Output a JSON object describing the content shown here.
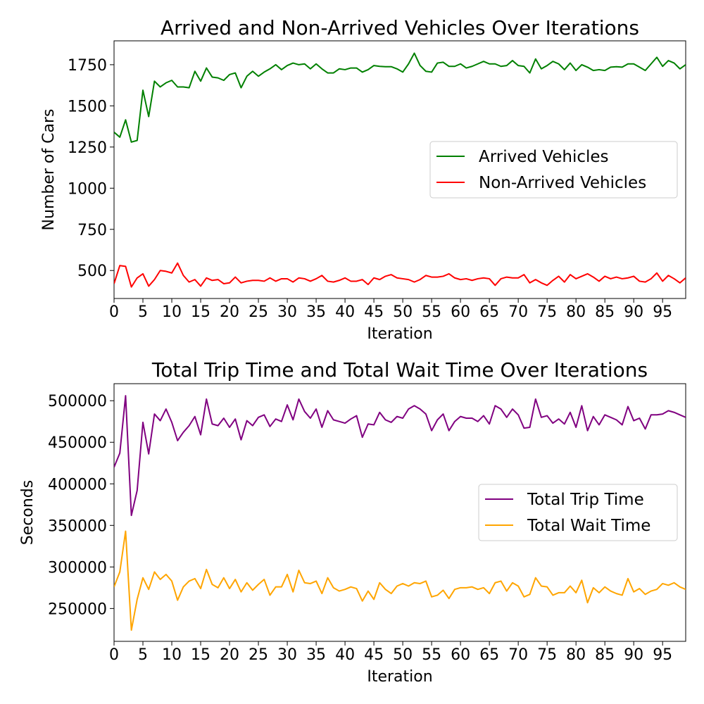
{
  "chart_data": [
    {
      "type": "line",
      "title": "Arrived and Non-Arrived Vehicles Over Iterations",
      "xlabel": "Iteration",
      "ylabel": "Number of Cars",
      "xlim": [
        0,
        99
      ],
      "ylim": [
        330,
        1895
      ],
      "x_ticks": [
        0,
        5,
        10,
        15,
        20,
        25,
        30,
        35,
        40,
        45,
        50,
        55,
        60,
        65,
        70,
        75,
        80,
        85,
        90,
        95
      ],
      "y_ticks": [
        500,
        750,
        1000,
        1250,
        1500,
        1750
      ],
      "legend_position": "center-right",
      "series": [
        {
          "name": "Arrived Vehicles",
          "color": "#008000",
          "values": [
            1340,
            1310,
            1415,
            1280,
            1290,
            1595,
            1435,
            1650,
            1615,
            1640,
            1655,
            1615,
            1615,
            1610,
            1710,
            1650,
            1730,
            1675,
            1670,
            1655,
            1690,
            1700,
            1610,
            1680,
            1710,
            1680,
            1705,
            1725,
            1750,
            1720,
            1745,
            1760,
            1750,
            1755,
            1725,
            1755,
            1725,
            1700,
            1700,
            1725,
            1720,
            1730,
            1730,
            1705,
            1720,
            1745,
            1740,
            1738,
            1738,
            1725,
            1705,
            1755,
            1820,
            1745,
            1710,
            1705,
            1760,
            1765,
            1740,
            1740,
            1755,
            1730,
            1740,
            1755,
            1770,
            1755,
            1755,
            1740,
            1745,
            1775,
            1745,
            1740,
            1700,
            1785,
            1725,
            1745,
            1770,
            1755,
            1720,
            1760,
            1715,
            1750,
            1735,
            1715,
            1720,
            1715,
            1735,
            1738,
            1735,
            1755,
            1755,
            1735,
            1715,
            1755,
            1795,
            1740,
            1775,
            1760,
            1725,
            1750
          ]
        },
        {
          "name": "Non-Arrived Vehicles",
          "color": "#ff0000",
          "values": [
            420,
            530,
            525,
            400,
            455,
            480,
            405,
            445,
            500,
            495,
            485,
            545,
            470,
            430,
            445,
            405,
            455,
            440,
            445,
            420,
            425,
            460,
            425,
            435,
            440,
            440,
            435,
            455,
            435,
            450,
            450,
            430,
            455,
            450,
            435,
            450,
            470,
            435,
            430,
            440,
            455,
            435,
            435,
            445,
            415,
            455,
            445,
            465,
            475,
            455,
            450,
            445,
            430,
            445,
            470,
            460,
            460,
            465,
            480,
            455,
            445,
            450,
            440,
            450,
            455,
            450,
            410,
            450,
            460,
            455,
            455,
            475,
            425,
            445,
            425,
            410,
            440,
            465,
            430,
            475,
            450,
            465,
            480,
            460,
            435,
            465,
            450,
            460,
            450,
            455,
            465,
            435,
            430,
            450,
            485,
            435,
            470,
            450,
            425,
            455
          ]
        }
      ]
    },
    {
      "type": "line",
      "title": "Total Trip Time and Total Wait Time Over Iterations",
      "xlabel": "Iteration",
      "ylabel": "Seconds",
      "xlim": [
        0,
        99
      ],
      "ylim": [
        210500,
        520500
      ],
      "x_ticks": [
        0,
        5,
        10,
        15,
        20,
        25,
        30,
        35,
        40,
        45,
        50,
        55,
        60,
        65,
        70,
        75,
        80,
        85,
        90,
        95
      ],
      "y_ticks": [
        250000,
        300000,
        350000,
        400000,
        450000,
        500000
      ],
      "legend_position": "center-right",
      "series": [
        {
          "name": "Total Trip Time",
          "color": "#800080",
          "values": [
            420000,
            437000,
            506000,
            362000,
            392000,
            474000,
            436000,
            484000,
            476000,
            490000,
            474000,
            452000,
            462000,
            470000,
            481000,
            459000,
            502000,
            472000,
            470000,
            479000,
            468000,
            478000,
            453000,
            476000,
            470000,
            480000,
            483000,
            469000,
            478000,
            475000,
            495000,
            477000,
            502000,
            487000,
            479000,
            490000,
            468000,
            488000,
            477000,
            475000,
            473000,
            478000,
            482000,
            456000,
            472000,
            471000,
            486000,
            477000,
            474000,
            481000,
            479000,
            490000,
            494000,
            490000,
            484000,
            464000,
            477000,
            484000,
            464000,
            475000,
            481000,
            479000,
            479000,
            475000,
            482000,
            472000,
            494000,
            490000,
            480000,
            490000,
            483000,
            467000,
            468000,
            502000,
            480000,
            482000,
            473000,
            478000,
            472000,
            486000,
            468000,
            494000,
            464000,
            481000,
            471000,
            483000,
            480000,
            477000,
            471000,
            493000,
            476000,
            479000,
            466000,
            483000,
            483000,
            484000,
            488000,
            486000,
            483000,
            480000
          ]
        },
        {
          "name": "Total Wait Time",
          "color": "#ffa500",
          "values": [
            276000,
            294000,
            343000,
            224000,
            261000,
            287000,
            273000,
            294000,
            285000,
            291000,
            283000,
            260000,
            276000,
            283000,
            286000,
            274000,
            297000,
            279000,
            275000,
            287000,
            274000,
            285000,
            270000,
            281000,
            272000,
            279000,
            285000,
            266000,
            276000,
            276000,
            291000,
            270000,
            296000,
            281000,
            280000,
            283000,
            268000,
            287000,
            275000,
            271000,
            273000,
            276000,
            274000,
            259000,
            271000,
            261000,
            281000,
            273000,
            268000,
            277000,
            280000,
            277000,
            281000,
            280000,
            283000,
            264000,
            266000,
            272000,
            262000,
            273000,
            275000,
            275000,
            276000,
            273000,
            275000,
            268000,
            281000,
            283000,
            271000,
            281000,
            277000,
            264000,
            267000,
            287000,
            277000,
            276000,
            266000,
            269000,
            269000,
            277000,
            269000,
            284000,
            257000,
            275000,
            269000,
            276000,
            271000,
            268000,
            266000,
            286000,
            270000,
            274000,
            267000,
            271000,
            273000,
            280000,
            278000,
            281000,
            276000,
            273000
          ]
        }
      ]
    }
  ]
}
